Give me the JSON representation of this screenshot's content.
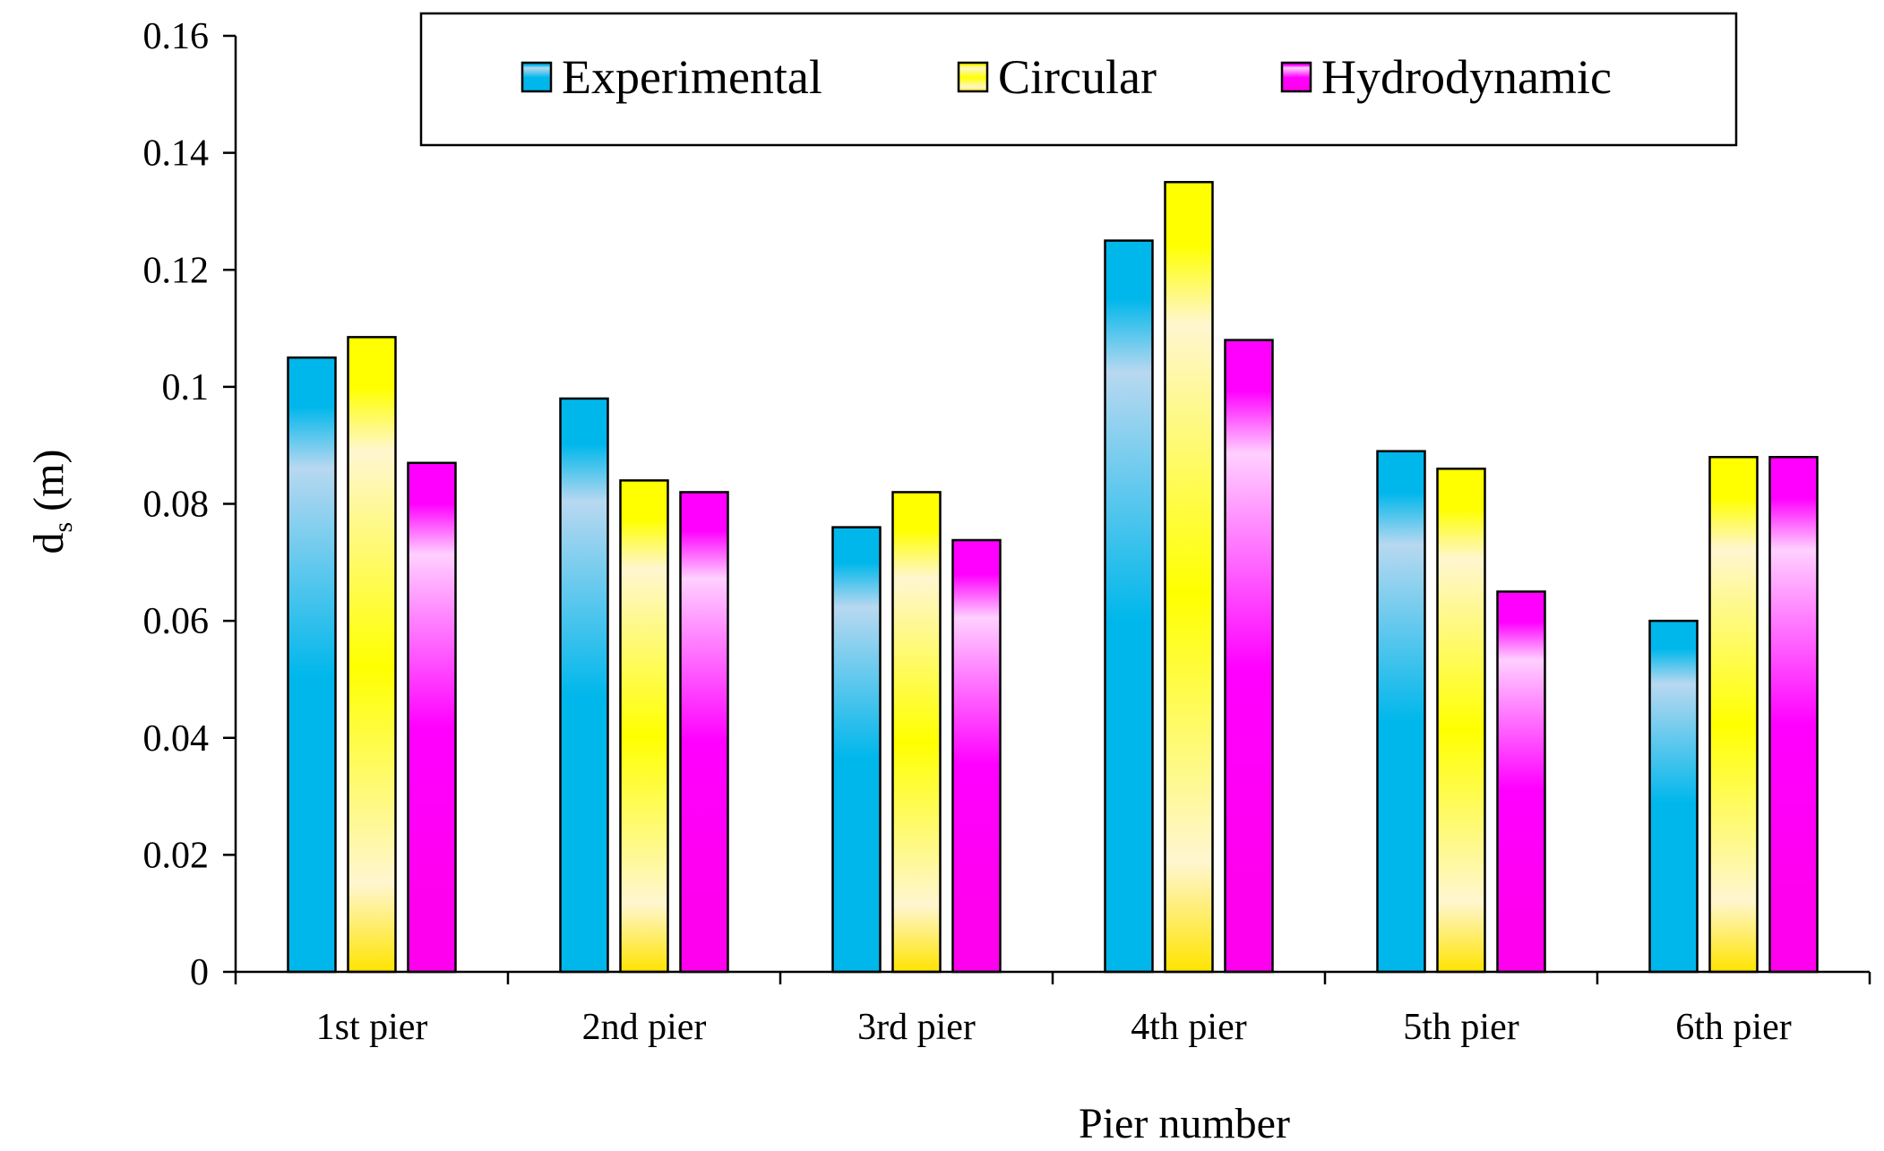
{
  "chart_data": {
    "type": "bar",
    "title": "",
    "xlabel": "Pier number",
    "ylabel_main": "d",
    "ylabel_sub": "s",
    "ylabel_unit": " (m)",
    "categories": [
      "1st pier",
      "2nd pier",
      "3rd pier",
      "4th pier",
      "5th pier",
      "6th pier"
    ],
    "series": [
      {
        "name": "Experimental",
        "values": [
          0.105,
          0.098,
          0.076,
          0.125,
          0.089,
          0.06
        ],
        "colors": [
          "#00b7eb",
          "#b8d8f0",
          "#00b7eb"
        ]
      },
      {
        "name": "Circular",
        "values": [
          0.1085,
          0.084,
          0.082,
          0.135,
          0.086,
          0.088
        ],
        "colors": [
          "#ffff00",
          "#fff6d0",
          "#ffe400"
        ]
      },
      {
        "name": "Hydrodynamic",
        "values": [
          0.087,
          0.082,
          0.0738,
          0.108,
          0.065,
          0.088
        ],
        "colors": [
          "#ff00ff",
          "#ffd0ff",
          "#ff00ee"
        ]
      }
    ],
    "ylim": [
      0,
      0.16
    ],
    "yticks": [
      "0",
      "0.02",
      "0.04",
      "0.06",
      "0.08",
      "0.1",
      "0.12",
      "0.14",
      "0.16"
    ],
    "grid": false,
    "legend_position": "top-center-boxed"
  }
}
